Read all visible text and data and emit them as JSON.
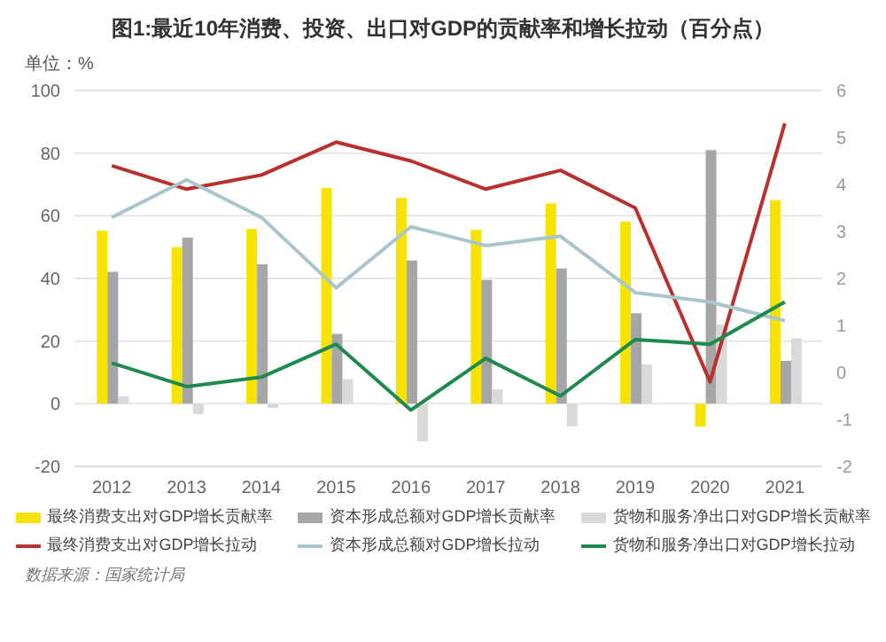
{
  "chart_data": {
    "type": "bar",
    "title": "图1:最近10年消费、投资、出口对GDP的贡献率和增长拉动（百分点）",
    "annotations": [
      "单位：%",
      "数据来源：国家统计局"
    ],
    "categories": [
      "2012",
      "2013",
      "2014",
      "2015",
      "2016",
      "2017",
      "2018",
      "2019",
      "2020",
      "2021"
    ],
    "series": [
      {
        "name": "最终消费支出对GDP增长贡献率",
        "color": "#f7e300",
        "values": [
          55.2,
          50,
          55.8,
          68.9,
          65.7,
          55.5,
          63.9,
          58.1,
          -7.3,
          65
        ]
      },
      {
        "name": "资本形成总额对GDP增长贡献率",
        "color": "#a6a6a6",
        "values": [
          42.1,
          53,
          44.5,
          22.3,
          45.7,
          39.5,
          43.2,
          28.9,
          81,
          13.7
        ]
      },
      {
        "name": "货物和服务净出口对GDP增长贡献率",
        "color": "#d9d9d9",
        "values": [
          2.4,
          -3.3,
          -1.3,
          7.9,
          -12,
          4.6,
          -7.2,
          12.6,
          25.3,
          20.9
        ]
      },
      {
        "name": "最终消费支出对GDP增长拉动",
        "type": "line",
        "axis": "y2",
        "color": "#b8312f",
        "values": [
          4.4,
          3.9,
          4.2,
          4.9,
          4.5,
          3.9,
          4.3,
          3.5,
          -0.2,
          5.3
        ]
      },
      {
        "name": "资本形成总额对GDP增长拉动",
        "type": "line",
        "axis": "y2",
        "color": "#a9c6cc",
        "values": [
          3.3,
          4.1,
          3.3,
          1.8,
          3.1,
          2.7,
          2.9,
          1.7,
          1.5,
          1.1
        ]
      },
      {
        "name": "货物和服务净出口对GDP增长拉动",
        "type": "line",
        "axis": "y2",
        "color": "#1f8a50",
        "values": [
          0.2,
          -0.3,
          -0.1,
          0.6,
          -0.8,
          0.3,
          -0.5,
          0.7,
          0.6,
          1.5
        ]
      }
    ],
    "ylim": [
      -20,
      100
    ],
    "yticks": [
      -20,
      0,
      20,
      40,
      60,
      80,
      100
    ],
    "y2lim": [
      -2,
      6
    ],
    "y2ticks": [
      -2,
      -1,
      0,
      1,
      2,
      3,
      4,
      5,
      6
    ],
    "grid": "y",
    "legend": "bottom"
  }
}
